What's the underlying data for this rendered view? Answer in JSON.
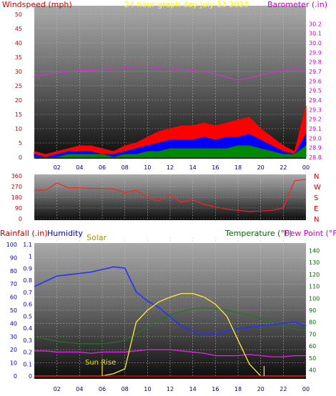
{
  "header": {
    "left": "Windspeed (mph)",
    "center": "24 hour graph day   July 13 2025",
    "right": "Barometer (.in)"
  },
  "colors": {
    "wind_label": "#cc0000",
    "title": "#ffff00",
    "barometer": "#cc00cc",
    "rain": "#cc0000",
    "humidity": "#0000cc",
    "solar": "#999900",
    "temperature": "#006600",
    "dewpoint": "#cc00cc",
    "direction": "#cc0000"
  },
  "chart_data": [
    {
      "type": "line",
      "title": "24 hour graph day   July 13 2025",
      "x_tick_labels": [
        "02",
        "04",
        "06",
        "08",
        "10",
        "12",
        "14",
        "16",
        "18",
        "20",
        "22",
        "00"
      ],
      "y_left_label": "Windspeed (mph)",
      "y_left_ticks": [
        0,
        5,
        10,
        15,
        20,
        25,
        30,
        35,
        40,
        45,
        50
      ],
      "y_left_lim": [
        0,
        50
      ],
      "y_right_label": "Barometer (.in)",
      "y_right_ticks": [
        28.8,
        28.9,
        29.0,
        29.1,
        29.2,
        29.3,
        29.4,
        29.5,
        29.6,
        29.7,
        29.8,
        29.9,
        30.0,
        30.1,
        30.2
      ],
      "y_right_lim": [
        28.8,
        30.3
      ],
      "x_hours": [
        0,
        1,
        2,
        3,
        4,
        5,
        6,
        7,
        8,
        9,
        10,
        11,
        12,
        13,
        14,
        15,
        16,
        17,
        18,
        19,
        20,
        21,
        22,
        23,
        24
      ],
      "barometer": [
        29.65,
        29.67,
        29.69,
        29.7,
        29.71,
        29.71,
        29.72,
        29.73,
        29.74,
        29.75,
        29.75,
        29.74,
        29.73,
        29.72,
        29.71,
        29.7,
        29.67,
        29.64,
        29.61,
        29.63,
        29.66,
        29.69,
        29.71,
        29.73,
        29.7
      ],
      "wind_gust": [
        2,
        1,
        2,
        3,
        4,
        4,
        3,
        2,
        4,
        5,
        7,
        9,
        10,
        11,
        11,
        12,
        11,
        12,
        13,
        14,
        10,
        7,
        4,
        2,
        18
      ],
      "wind_speed": [
        1,
        0,
        1,
        2,
        2,
        2,
        1,
        1,
        2,
        3,
        4,
        5,
        6,
        6,
        6,
        7,
        6,
        7,
        7,
        8,
        6,
        4,
        2,
        1,
        8
      ],
      "wind_avg": [
        0,
        0,
        0,
        1,
        1,
        1,
        1,
        0,
        1,
        1,
        2,
        2,
        3,
        3,
        3,
        3,
        3,
        3,
        4,
        4,
        3,
        2,
        1,
        1,
        4
      ]
    },
    {
      "type": "line",
      "y_left_ticks": [
        0,
        90,
        180,
        270,
        360
      ],
      "y_left_lim": [
        0,
        360
      ],
      "y_right_labels": [
        "N",
        "W",
        "S",
        "E",
        "N"
      ],
      "x_hours": [
        0,
        1,
        2,
        3,
        4,
        5,
        6,
        7,
        8,
        9,
        10,
        11,
        12,
        13,
        14,
        15,
        16,
        17,
        18,
        19,
        20,
        21,
        22,
        23,
        24
      ],
      "wind_direction": [
        240,
        240,
        300,
        260,
        260,
        255,
        255,
        250,
        220,
        240,
        180,
        150,
        200,
        140,
        160,
        120,
        100,
        80,
        70,
        60,
        65,
        70,
        90,
        320,
        330
      ]
    },
    {
      "type": "line",
      "series_labels": [
        "Rainfall (.in)",
        "Humidity",
        "Solar",
        "Temperature (°F)",
        "Dew Point (°F)"
      ],
      "annotation": "Sun Rise",
      "x_tick_labels": [
        "02",
        "04",
        "06",
        "08",
        "10",
        "12",
        "14",
        "16",
        "18",
        "20",
        "22",
        "00"
      ],
      "y_left_ticks": [
        0,
        10,
        20,
        30,
        40,
        50,
        60,
        70,
        80,
        90,
        100
      ],
      "y_left_lim": [
        0,
        100
      ],
      "y_rain_ticks": [
        0,
        0.1,
        0.2,
        0.3,
        0.4,
        0.5,
        0.6,
        0.7,
        0.8,
        0.9,
        1,
        1.1
      ],
      "y_rain_lim": [
        0,
        1.1
      ],
      "y_right_ticks": [
        40,
        50,
        60,
        70,
        80,
        90,
        100,
        110,
        120,
        130,
        140
      ],
      "y_right_lim": [
        35,
        145
      ],
      "x_hours": [
        0,
        1,
        2,
        3,
        4,
        5,
        6,
        7,
        8,
        9,
        10,
        11,
        12,
        13,
        14,
        15,
        16,
        17,
        18,
        19,
        20,
        21,
        22,
        23,
        24
      ],
      "humidity": [
        68,
        72,
        76,
        77,
        78,
        79,
        81,
        83,
        82,
        64,
        57,
        52,
        45,
        38,
        34,
        32,
        32,
        34,
        36,
        37,
        38,
        39,
        40,
        41,
        38
      ],
      "temperature": [
        68,
        66,
        64,
        63,
        62,
        62,
        62,
        63,
        65,
        70,
        76,
        82,
        86,
        89,
        91,
        92,
        91,
        90,
        88,
        86,
        83,
        80,
        77,
        74,
        73
      ],
      "dew_point": [
        56,
        56,
        55,
        55,
        55,
        54,
        55,
        55,
        55,
        56,
        57,
        57,
        57,
        56,
        55,
        54,
        52,
        52,
        52,
        53,
        52,
        51,
        51,
        52,
        52
      ],
      "solar": [
        0,
        0,
        0,
        0,
        0,
        0,
        0,
        0.02,
        0.06,
        0.45,
        0.55,
        0.62,
        0.66,
        0.69,
        0.69,
        0.66,
        0.6,
        0.5,
        0.3,
        0.1,
        0,
        0,
        0,
        0,
        0
      ],
      "rainfall": [
        0,
        0,
        0,
        0,
        0,
        0,
        0,
        0,
        0,
        0,
        0,
        0,
        0,
        0,
        0,
        0,
        0,
        0,
        0,
        0,
        0,
        0,
        0,
        0,
        0
      ]
    }
  ]
}
